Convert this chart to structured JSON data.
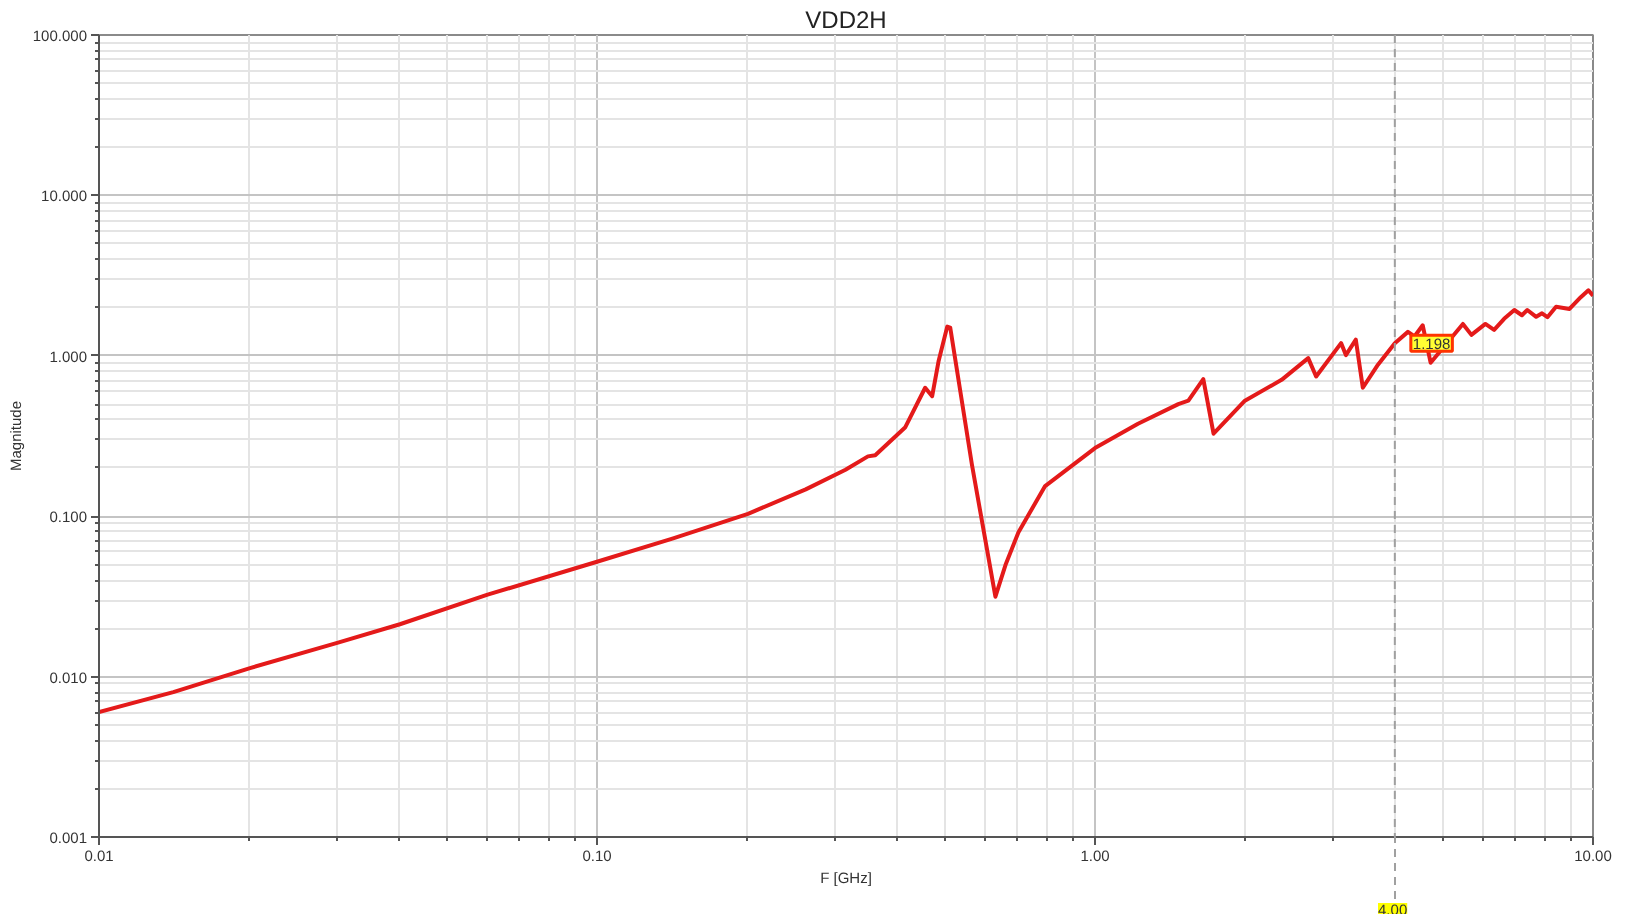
{
  "chart_data": {
    "type": "line",
    "title": "VDD2H",
    "xlabel": "F [GHz]",
    "ylabel": "Magnitude",
    "log": "xy",
    "xlim": [
      0.01,
      10
    ],
    "ylim": [
      0.001,
      100
    ],
    "xticks": [
      0.01,
      {
        "value": 0.1,
        "label": "0.10"
      },
      {
        "value": 1,
        "label": "1.00"
      },
      {
        "value": 10,
        "label": "10.00"
      }
    ],
    "yticks": [
      0.001,
      {
        "value": 0.01,
        "label": "0.010"
      },
      {
        "value": 0.1,
        "label": "0.100"
      },
      {
        "value": 1,
        "label": "1.000"
      },
      {
        "value": 10,
        "label": "10.000"
      },
      {
        "value": 100,
        "label": "100.000"
      }
    ],
    "grid": true,
    "series": [
      {
        "color": "#e41a1a",
        "x": [
          0.01,
          0.0141,
          0.0201,
          0.0302,
          0.0402,
          0.0603,
          0.1,
          0.1417,
          0.201,
          0.2625,
          0.3155,
          0.35,
          0.362,
          0.416,
          0.456,
          0.471,
          0.485,
          0.505,
          0.512,
          0.566,
          0.631,
          0.661,
          0.702,
          0.794,
          1.0,
          1.22,
          1.47,
          1.54,
          1.65,
          1.73,
          2.0,
          2.37,
          2.68,
          2.78,
          3.12,
          3.19,
          3.34,
          3.45,
          3.7,
          4.0,
          4.25,
          4.38,
          4.55,
          4.72,
          5.48,
          5.7,
          6.08,
          6.33,
          6.63,
          6.95,
          7.2,
          7.38,
          7.69,
          7.9,
          8.1,
          8.43,
          8.97,
          9.45,
          9.79,
          10.0
        ],
        "values": [
          0.006,
          0.008,
          0.0113,
          0.0163,
          0.0212,
          0.0324,
          0.052,
          0.0725,
          0.1035,
          0.147,
          0.195,
          0.236,
          0.24,
          0.359,
          0.632,
          0.56,
          0.92,
          1.52,
          1.5,
          0.21,
          0.0315,
          0.0496,
          0.0795,
          0.154,
          0.266,
          0.377,
          0.5,
          0.525,
          0.716,
          0.327,
          0.525,
          0.708,
          0.967,
          0.743,
          1.2,
          1.01,
          1.26,
          0.632,
          0.88,
          1.198,
          1.41,
          1.32,
          1.55,
          0.906,
          1.58,
          1.35,
          1.58,
          1.45,
          1.7,
          1.93,
          1.79,
          1.93,
          1.75,
          1.84,
          1.74,
          2.02,
          1.96,
          2.32,
          2.56,
          2.37
        ]
      }
    ],
    "ref_lines": [
      {
        "axis": "x",
        "value": 4,
        "label": "4.00",
        "color": "#a0a0a0",
        "line_style": "dashed"
      }
    ],
    "annotations": [
      {
        "text": "1.198",
        "x": 4,
        "y": 1.198
      }
    ]
  }
}
